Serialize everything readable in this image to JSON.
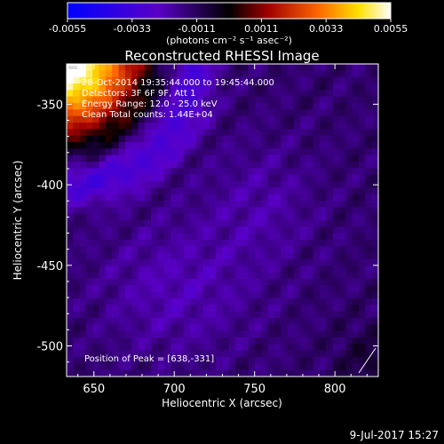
{
  "colorbar": {
    "ticks": [
      "-0.0055",
      "-0.0033",
      "-0.0011",
      "0.0011",
      "0.0033",
      "0.0055"
    ],
    "unit_label": "(photons cm⁻² s⁻¹ asec⁻²)"
  },
  "plot": {
    "title": "Reconstructed RHESSI Image",
    "annotations": [
      "28-Oct-2014 19:35:44.000 to 19:45:44.000",
      "Detectors: 3F 6F 9F, Att 1",
      "Energy Range: 12.0 - 25.0 keV",
      "Clean     Total counts: 1.44E+04"
    ],
    "peak_label": "Position of Peak = [638,-331]"
  },
  "footer": {
    "date": "9-Jul-2017 15:27"
  },
  "chart_data": {
    "type": "heatmap",
    "title": "Reconstructed RHESSI Image",
    "xlabel": "Heliocentric X (arcsec)",
    "ylabel": "Heliocentric Y (arcsec)",
    "xlim": [
      633,
      827
    ],
    "ylim": [
      -519,
      -325
    ],
    "x_ticks": [
      650,
      700,
      750,
      800
    ],
    "y_ticks": [
      -350,
      -400,
      -450,
      -500
    ],
    "colorbar_range": [
      -0.0055,
      0.0055
    ],
    "colormap": [
      "#0000ff",
      "#5a00c8",
      "#000000",
      "#a00000",
      "#ff6a00",
      "#ffe000",
      "#ffffff"
    ],
    "peak": [
      638,
      -331
    ],
    "date_range": "28-Oct-2014 19:35:44.000 to 19:45:44.000",
    "detectors": "3F 6F 9F, Att 1",
    "energy_range": "12.0 - 25.0 keV",
    "algorithm": "Clean",
    "total_counts": "1.44E+04"
  }
}
